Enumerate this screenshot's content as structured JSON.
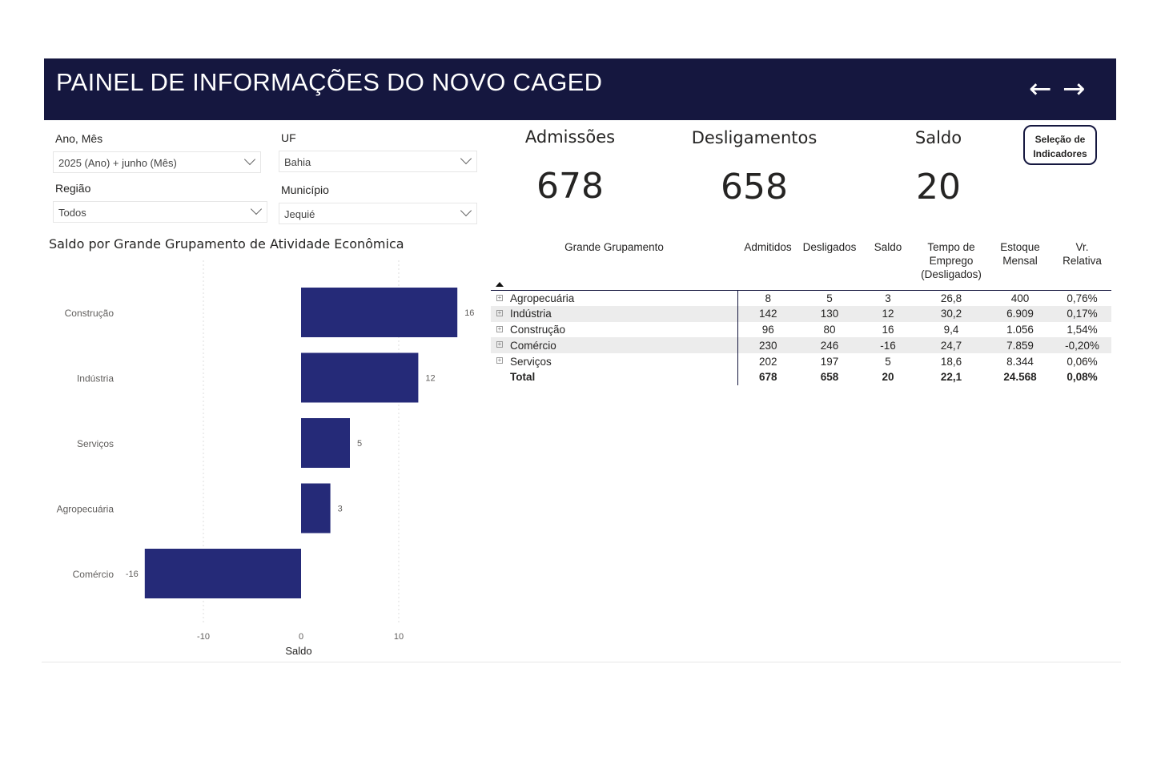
{
  "header": {
    "title": "PAINEL DE INFORMAÇÕES DO NOVO CAGED",
    "back_icon": "←",
    "forward_icon": "→"
  },
  "filters": [
    {
      "label": "Ano, Mês",
      "value": "2025 (Ano) + junho (Mês)"
    },
    {
      "label": "UF",
      "value": "Bahia"
    },
    {
      "label": "Região",
      "value": "Todos"
    },
    {
      "label": "Município",
      "value": "Jequié"
    }
  ],
  "kpis": [
    {
      "label": "Admissões",
      "value": "678"
    },
    {
      "label": "Desligamentos",
      "value": "658"
    },
    {
      "label": "Saldo",
      "value": "20"
    }
  ],
  "indicator_button": {
    "line1": "Seleção de",
    "line2": "Indicadores"
  },
  "table": {
    "headers": [
      "Grande Grupamento",
      "Admitidos",
      "Desligados",
      "Saldo",
      "Tempo de Emprego (Desligados)",
      "Estoque Mensal",
      "Vr. Relativa"
    ],
    "rows": [
      [
        "Agropecuária",
        "8",
        "5",
        "3",
        "26,8",
        "400",
        "0,76%"
      ],
      [
        "Indústria",
        "142",
        "130",
        "12",
        "30,2",
        "6.909",
        "0,17%"
      ],
      [
        "Construção",
        "96",
        "80",
        "16",
        "9,4",
        "1.056",
        "1,54%"
      ],
      [
        "Comércio",
        "230",
        "246",
        "-16",
        "24,7",
        "7.859",
        "-0,20%"
      ],
      [
        "Serviços",
        "202",
        "197",
        "5",
        "18,6",
        "8.344",
        "0,06%"
      ]
    ],
    "total": [
      "Total",
      "678",
      "658",
      "20",
      "22,1",
      "24.568",
      "0,08%"
    ]
  },
  "chart_data": {
    "type": "bar",
    "orientation": "horizontal",
    "title": "Saldo por Grande Grupamento de Atividade Econômica",
    "categories": [
      "Construção",
      "Indústria",
      "Serviços",
      "Agropecuária",
      "Comércio"
    ],
    "values": [
      16,
      12,
      5,
      3,
      -16
    ],
    "xlabel": "Saldo",
    "xticks": [
      -10,
      0,
      10
    ],
    "xlim": [
      -18.5,
      17.5
    ],
    "grid": true,
    "color": "#252a78"
  }
}
